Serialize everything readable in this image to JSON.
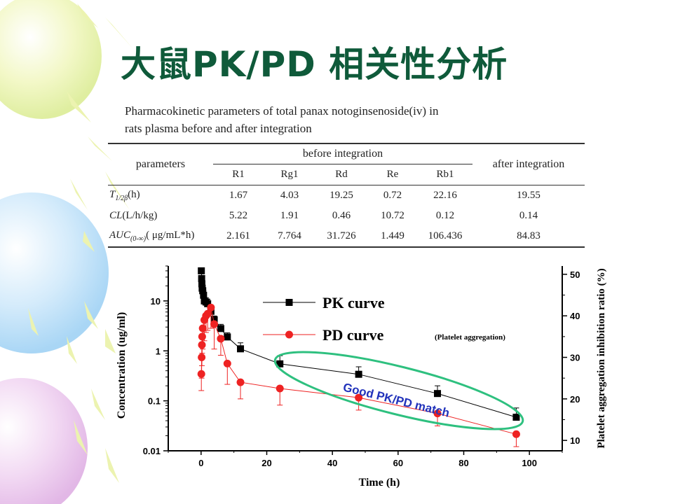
{
  "slide": {
    "title": "大鼠PK/PD 相关性分析",
    "caption_lines": [
      "Pharmacokinetic parameters of total panax notoginsenoside(iv) in",
      "rats plasma before and after integration"
    ]
  },
  "pk_table": {
    "header_parameters": "parameters",
    "header_before": "before integration",
    "header_after": "after integration",
    "subheaders": [
      "R1",
      "Rg1",
      "Rd",
      "Re",
      "Rb1"
    ],
    "rows": [
      {
        "name": "T1/2β",
        "main": "T",
        "sub": "1/2β",
        "unit": "(h)",
        "values": [
          "1.67",
          "4.03",
          "19.25",
          "0.72",
          "22.16"
        ],
        "after": "19.55"
      },
      {
        "name": "CL",
        "main": "CL",
        "sub": "",
        "unit": "(L/h/kg)",
        "values": [
          "5.22",
          "1.91",
          "0.46",
          "10.72",
          "0.12"
        ],
        "after": "0.14"
      },
      {
        "name": "AUC(0-∞)",
        "main": "AUC",
        "sub": "(0-∞)",
        "unit": "( μg/mL*h)",
        "values": [
          "2.161",
          "7.764",
          "31.726",
          "1.449",
          "106.436"
        ],
        "after": "84.83"
      }
    ]
  },
  "chart_data": {
    "type": "scatter",
    "xlabel": "Time (h)",
    "ylabel_left": "Concentration (ug/ml)",
    "ylabel_right": "Platelet aggregation inhibition ratio (%)",
    "xlim": [
      -10,
      110
    ],
    "x_ticks": [
      0,
      20,
      40,
      60,
      80,
      100
    ],
    "y_left_scale": "log",
    "y_left_lim": [
      0.01,
      50
    ],
    "y_left_ticks": [
      0.01,
      0.1,
      1,
      10
    ],
    "y_left_tick_labels": [
      "0.01",
      "0.1",
      "1",
      "10"
    ],
    "y_right_lim": [
      7.5,
      52
    ],
    "y_right_ticks": [
      10,
      20,
      30,
      40,
      50
    ],
    "y_right_tick_labels": [
      "10",
      "20",
      "30",
      "40",
      "50"
    ],
    "series": [
      {
        "name": "PK curve",
        "legend_label": "PK curve",
        "color": "#000000",
        "marker": "square",
        "axis": "left",
        "x": [
          0.08,
          0.17,
          0.25,
          0.33,
          0.5,
          0.75,
          1,
          1.5,
          2,
          3,
          4,
          6,
          8,
          12,
          24,
          48,
          72,
          96
        ],
        "y": [
          40,
          28,
          22,
          18,
          16,
          13,
          10,
          9.5,
          8.8,
          6.2,
          4.2,
          2.8,
          1.9,
          1.1,
          0.55,
          0.34,
          0.14,
          0.047
        ],
        "err_up": [
          5,
          8,
          5,
          4,
          4,
          3,
          2,
          2,
          2,
          1.2,
          0.8,
          0.6,
          0.4,
          0.35,
          0.25,
          0.14,
          0.06,
          0.025
        ]
      },
      {
        "name": "PD curve",
        "legend_label": "PD curve",
        "legend_note": "(Platelet aggregation)",
        "color": "#ee2222",
        "marker": "circle",
        "axis": "right",
        "x": [
          0.08,
          0.17,
          0.25,
          0.33,
          0.5,
          1,
          1.5,
          2,
          3,
          4,
          6,
          8,
          12,
          24,
          48,
          72,
          96
        ],
        "y": [
          26,
          30,
          33,
          35,
          37,
          39,
          40,
          40.5,
          42,
          38,
          34.5,
          28.5,
          24,
          22.5,
          20.3,
          16.5,
          11.5
        ],
        "err_down": [
          4,
          5,
          5,
          4,
          5,
          5,
          4,
          4,
          5,
          6,
          4,
          5,
          4,
          4,
          3,
          3,
          3
        ],
        "err_up": [
          0,
          0,
          0,
          0,
          0,
          0,
          0,
          0,
          0,
          0,
          0,
          0,
          0,
          0,
          0,
          0,
          0
        ]
      }
    ],
    "annotation": {
      "text": "Good PK/PD match",
      "text_color": "#2233bb",
      "ellipse_color": "#2ec07f"
    }
  }
}
